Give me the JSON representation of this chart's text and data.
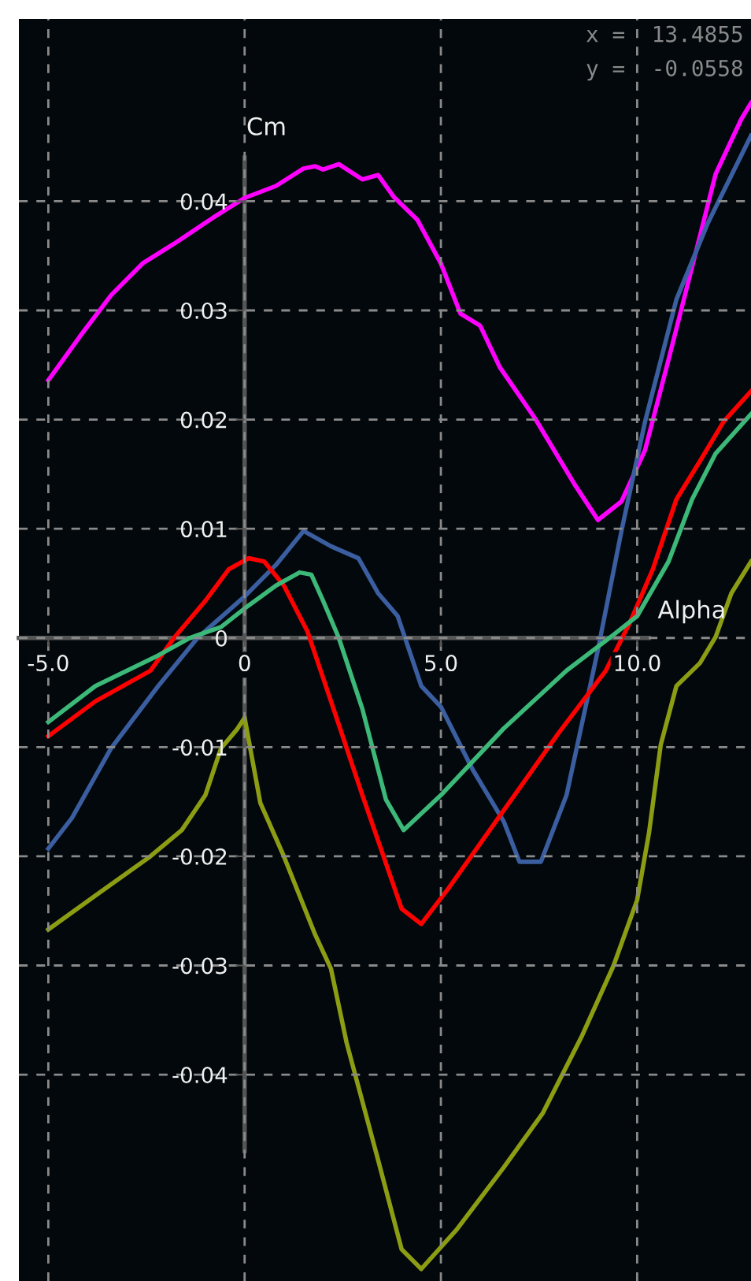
{
  "chart_data": {
    "type": "line",
    "xlabel": "Alpha",
    "ylabel": "Cm",
    "annotations": [
      "x =  13.4855",
      "y =  -0.0558"
    ],
    "xlim": [
      -5.75,
      12.9
    ],
    "ylim": [
      -0.0589,
      0.0567
    ],
    "xticks": [
      {
        "value": -5,
        "label": "-5.0"
      },
      0,
      {
        "value": 5,
        "label": "5.0"
      },
      {
        "value": 10,
        "label": "10.0"
      }
    ],
    "yticks": [
      -0.04,
      -0.03,
      -0.02,
      -0.01,
      0,
      0.01,
      0.02,
      0.03,
      0.04
    ],
    "grid": true,
    "legend": false,
    "marker": "none",
    "line_style": "solid",
    "series": [
      {
        "color": "#ff00ff",
        "x": [
          -5,
          -4.2,
          -3.4,
          -2.6,
          -1.8,
          -0.8,
          0,
          0.8,
          1.5,
          1.8,
          2.0,
          2.4,
          3.0,
          3.4,
          3.8,
          4.4,
          5.0,
          5.5,
          6.0,
          6.5,
          7.4,
          8.4,
          9.0,
          9.6,
          10.2,
          10.8,
          11.4,
          12.0,
          12.65,
          12.9
        ],
        "values": [
          0.0236,
          0.0276,
          0.0314,
          0.0343,
          0.0361,
          0.0385,
          0.0403,
          0.0414,
          0.043,
          0.0432,
          0.0429,
          0.0434,
          0.042,
          0.0424,
          0.0404,
          0.0383,
          0.0343,
          0.0297,
          0.0286,
          0.0248,
          0.0201,
          0.0141,
          0.0108,
          0.0125,
          0.0172,
          0.0255,
          0.034,
          0.0425,
          0.0475,
          0.049
        ]
      },
      {
        "color": "#3b5ea0",
        "x": [
          -5,
          -4.4,
          -3.4,
          -2.2,
          -1.2,
          0,
          0.8,
          1.5,
          2.2,
          2.9,
          3.4,
          3.9,
          4.5,
          5.0,
          5.8,
          6.6,
          7.0,
          7.55,
          8.2,
          9.0,
          9.6,
          10.2,
          11.0,
          11.8,
          12.9
        ],
        "values": [
          -0.0193,
          -0.0165,
          -0.0101,
          -0.0044,
          0,
          0.0038,
          0.0067,
          0.0098,
          0.0084,
          0.0073,
          0.0041,
          0.002,
          -0.0044,
          -0.0063,
          -0.012,
          -0.0168,
          -0.0205,
          -0.0205,
          -0.0144,
          -0.0011,
          0.0098,
          0.0198,
          0.031,
          0.038,
          0.046
        ]
      },
      {
        "color": "#ff0000",
        "x": [
          -5,
          -3.8,
          -2.4,
          -1.8,
          -1.0,
          -0.4,
          0.1,
          0.5,
          1.0,
          1.6,
          2.2,
          3.0,
          4.0,
          4.5,
          5.2,
          6.6,
          8.0,
          9.2,
          9.8,
          10.4,
          11.0,
          11.6,
          12.2,
          12.9
        ],
        "values": [
          -0.009,
          -0.0058,
          -0.003,
          0,
          0.0034,
          0.0063,
          0.0073,
          0.007,
          0.0048,
          0.0006,
          -0.0058,
          -0.0144,
          -0.0248,
          -0.0262,
          -0.0229,
          -0.0158,
          -0.0087,
          -0.003,
          0.0013,
          0.0063,
          0.0127,
          0.0162,
          0.0198,
          0.0226
        ]
      },
      {
        "color": "#3cb878",
        "x": [
          -5,
          -3.8,
          -2.2,
          -1.4,
          -0.6,
          0,
          0.8,
          1.4,
          1.7,
          2.0,
          2.4,
          3.0,
          3.6,
          4.05,
          5.0,
          6.6,
          8.2,
          9.4,
          10.0,
          10.8,
          11.4,
          12.0,
          12.9
        ],
        "values": [
          -0.0077,
          -0.0044,
          -0.0016,
          0,
          0.001,
          0.0027,
          0.0048,
          0.006,
          0.0058,
          0.0034,
          0,
          -0.0065,
          -0.0148,
          -0.0176,
          -0.0144,
          -0.0083,
          -0.003,
          0.0003,
          0.002,
          0.007,
          0.0127,
          0.0169,
          0.0205
        ]
      },
      {
        "color": "#8c9d14",
        "x": [
          -5,
          -3.8,
          -2.4,
          -1.6,
          -1.0,
          -0.6,
          -0.2,
          0,
          0.4,
          1.0,
          1.8,
          2.2,
          2.6,
          3.4,
          4.0,
          4.5,
          5.4,
          6.6,
          7.6,
          8.6,
          9.4,
          10.0,
          10.3,
          10.6,
          11.0,
          11.6,
          12.0,
          12.4,
          12.9
        ],
        "values": [
          -0.0267,
          -0.0236,
          -0.02,
          -0.0176,
          -0.0144,
          -0.0101,
          -0.0084,
          -0.0073,
          -0.0151,
          -0.02,
          -0.0272,
          -0.0303,
          -0.0371,
          -0.0478,
          -0.056,
          -0.0578,
          -0.0542,
          -0.0485,
          -0.0435,
          -0.0364,
          -0.03,
          -0.024,
          -0.0179,
          -0.0098,
          -0.0044,
          -0.0023,
          0.0001,
          0.0041,
          0.007
        ]
      }
    ]
  }
}
